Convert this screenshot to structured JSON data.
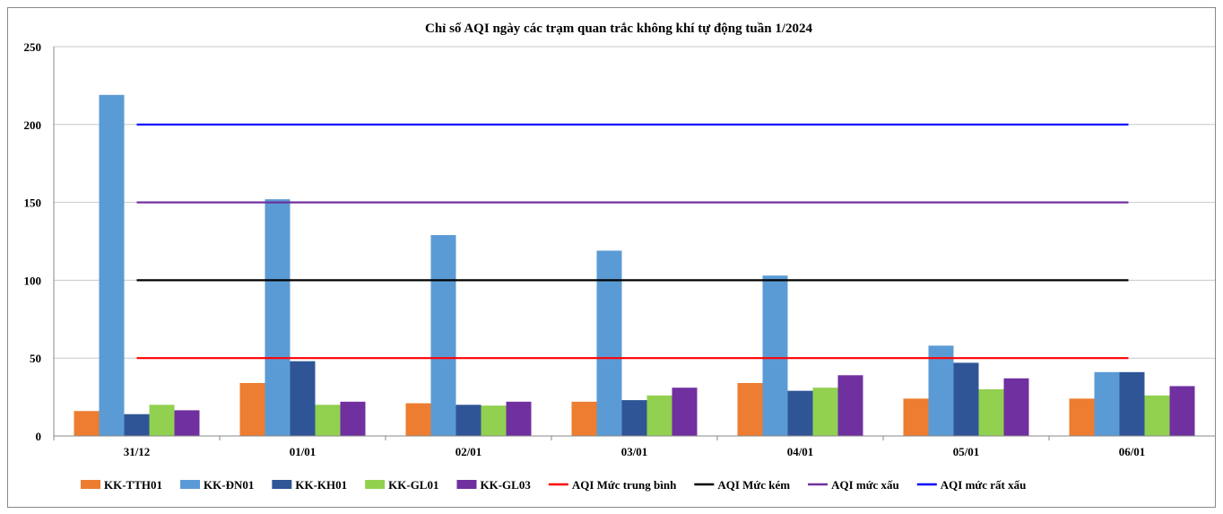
{
  "chart_data": {
    "type": "bar",
    "title": "Chỉ số AQI ngày các trạm quan trắc không khí tự động tuần 1/2024",
    "xlabel": "",
    "ylabel": "",
    "ylim": [
      0,
      250
    ],
    "yticks": [
      0,
      50,
      100,
      150,
      200,
      250
    ],
    "grid": true,
    "legend_position": "bottom",
    "categories": [
      "31/12",
      "01/01",
      "02/01",
      "03/01",
      "04/01",
      "05/01",
      "06/01"
    ],
    "series": [
      {
        "name": "KK-TTH01",
        "color": "#ED7D31",
        "values": [
          16,
          34,
          21,
          22,
          34,
          24,
          24
        ]
      },
      {
        "name": "KK-ĐN01",
        "color": "#5B9BD5",
        "values": [
          219,
          152,
          129,
          119,
          103,
          58,
          41
        ]
      },
      {
        "name": "KK-KH01",
        "color": "#2F5597",
        "values": [
          14,
          48,
          20,
          23,
          29,
          47,
          41
        ]
      },
      {
        "name": "KK-GL01",
        "color": "#92D050",
        "values": [
          20,
          20,
          19.5,
          26,
          31,
          30,
          26
        ]
      },
      {
        "name": "KK-GL03",
        "color": "#7030A0",
        "values": [
          16.5,
          22,
          22,
          31,
          39,
          37,
          32
        ]
      }
    ],
    "reference_lines": [
      {
        "name": "AQI Mức trung bình",
        "color": "#FF0000",
        "value": 50
      },
      {
        "name": "AQI Mức kém",
        "color": "#000000",
        "value": 100
      },
      {
        "name": "AQI mức xấu",
        "color": "#7030A0",
        "value": 150
      },
      {
        "name": "AQI mức rất xấu",
        "color": "#0000FF",
        "value": 200
      }
    ]
  }
}
